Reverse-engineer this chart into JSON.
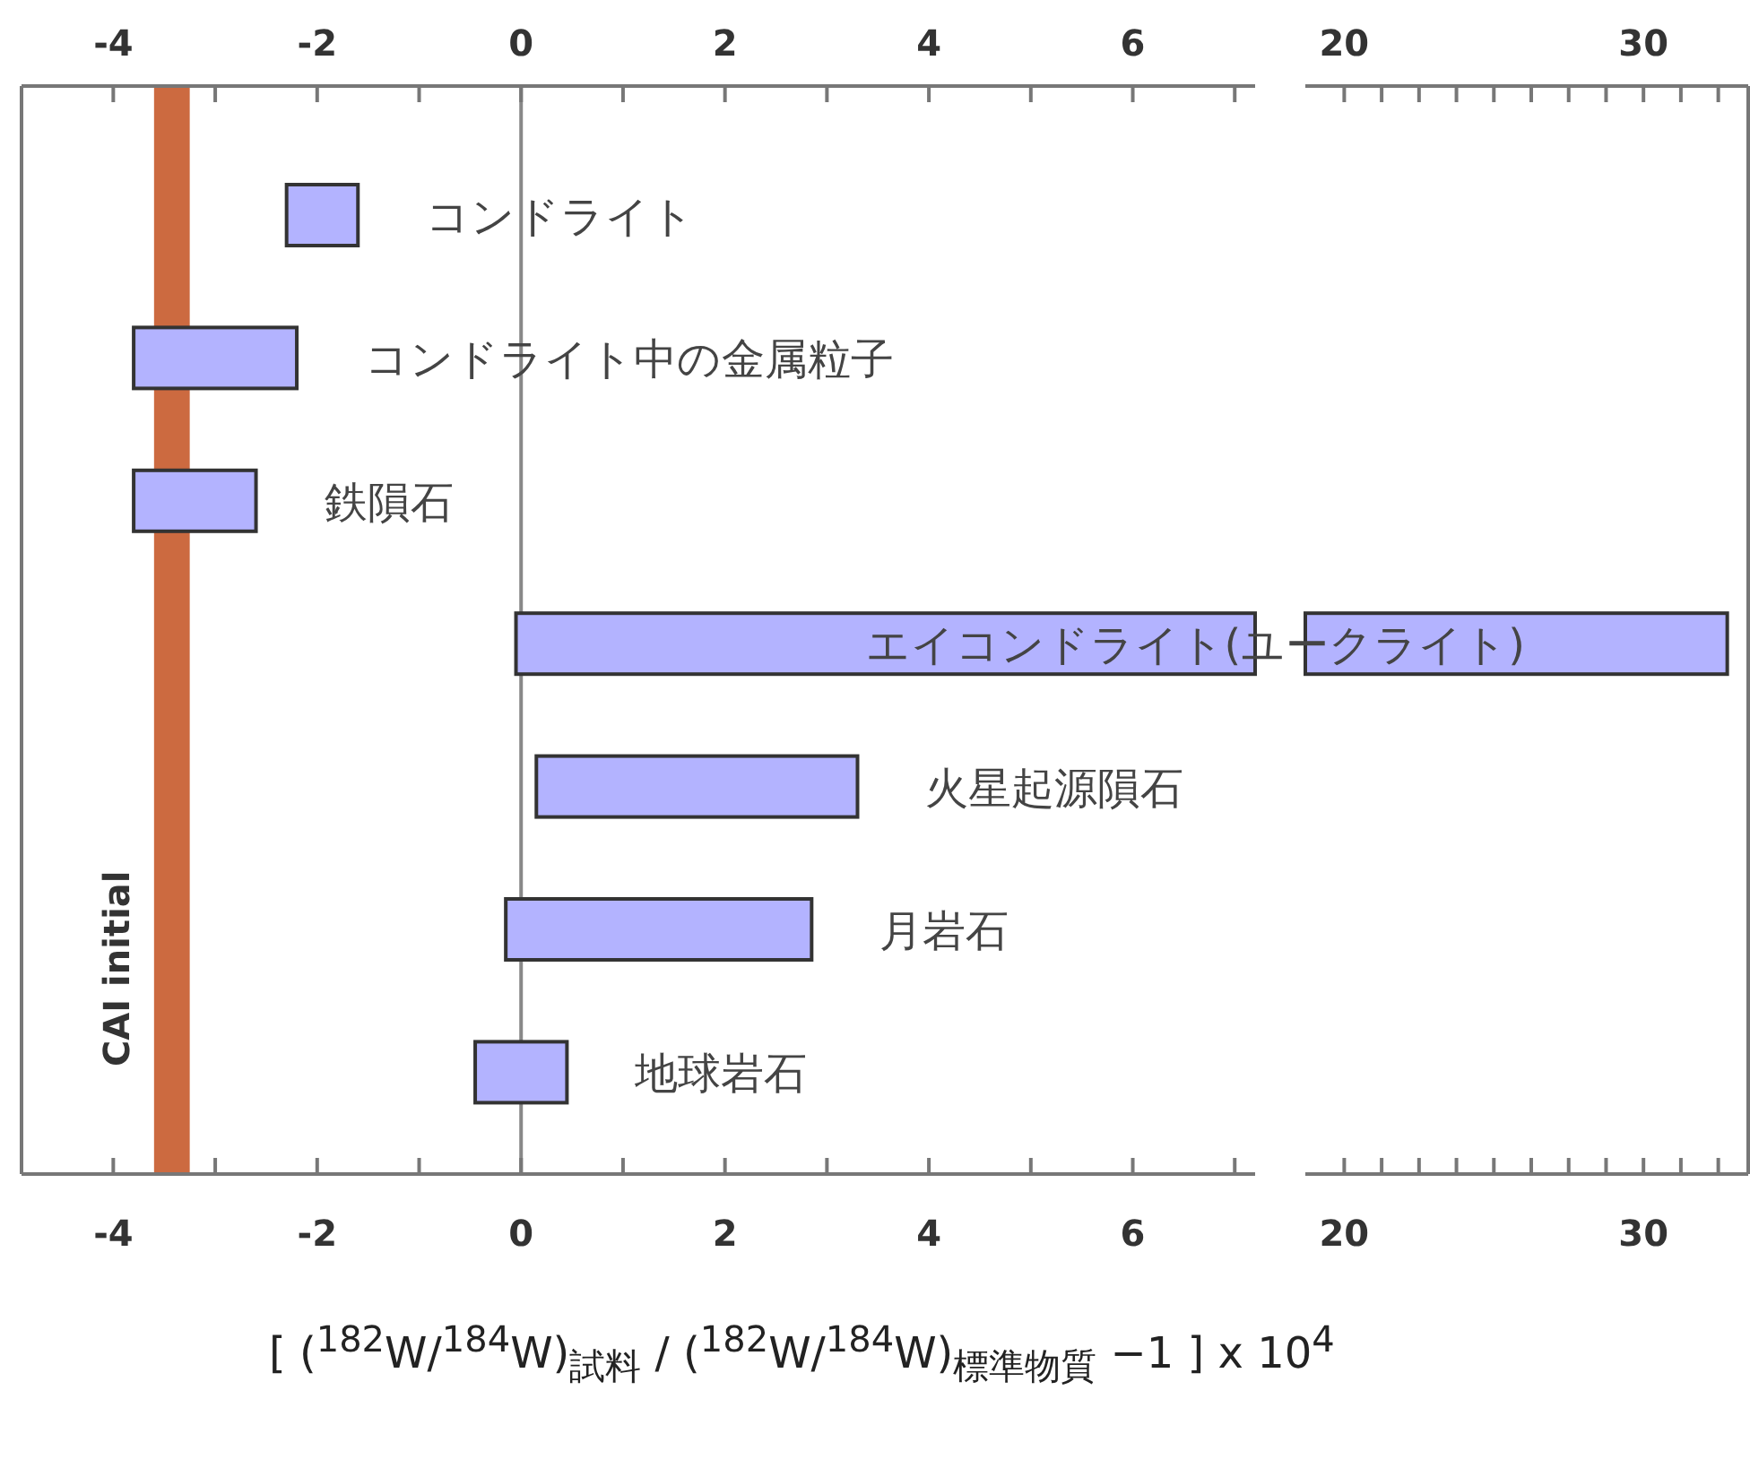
{
  "chart_data": [
    {
      "type": "bar",
      "orientation": "horizontal",
      "tick_labels": "x",
      "categories": [
        "コンドライト",
        "コンドライト中の金属粒子",
        "鉄隕石",
        "エイコンドライト(ユークライト)",
        "火星起源隕石",
        "月岩石",
        "地球岩石"
      ],
      "base": [
        -2.3,
        -3.8,
        -3.8,
        -0.05,
        0.15,
        -0.15,
        -0.45
      ],
      "values": [
        0.7,
        1.6,
        1.2,
        7.25,
        3.15,
        3.0,
        0.9
      ],
      "color": "#b3b3ff",
      "xlim": [
        -4.9,
        7.2
      ],
      "xticks": [
        -4,
        {
          "value": -3,
          "label": null
        },
        -2,
        {
          "value": -1,
          "label": null
        },
        0,
        {
          "value": 1,
          "label": null
        },
        2,
        {
          "value": 3,
          "label": null
        },
        4,
        {
          "value": 5,
          "label": null
        },
        6,
        {
          "value": 7,
          "label": null
        }
      ],
      "x2lim": [
        -4.9,
        7.2
      ],
      "x2ticks": [
        -4,
        {
          "value": -3,
          "label": null
        },
        -2,
        {
          "value": -1,
          "label": null
        },
        0,
        {
          "value": 1,
          "label": null
        },
        2,
        {
          "value": 3,
          "label": null
        },
        4,
        {
          "value": 5,
          "label": null
        },
        6,
        {
          "value": 7,
          "label": null
        }
      ],
      "xlabel": "[ ($^{182}$W/$^{184}$W)$_{試料}$ / ($^{182}$W/$^{184}$W)$_{標準物質}$ −1 ] x 10$^{4}$",
      "ref_lines": [
        {
          "axis": "x",
          "value": 0,
          "color": "#888888"
        }
      ],
      "bands": [
        {
          "axis": "x",
          "from": -3.6,
          "to": -3.25,
          "label": "CAI initial",
          "color": "#cc6a40"
        }
      ]
    },
    {
      "type": "bar",
      "orientation": "horizontal",
      "tick_labels": "x",
      "categories": [
        null,
        null,
        null,
        null,
        null,
        null,
        null
      ],
      "base": [
        null,
        null,
        null,
        18.7,
        null,
        null,
        null
      ],
      "values": [
        null,
        null,
        null,
        14.1,
        null,
        null,
        null
      ],
      "color": "#b3b3ff",
      "xlim": [
        18.7,
        33.5
      ],
      "xticks": [
        20,
        {
          "value": 21.25,
          "label": null
        },
        {
          "value": 22.5,
          "label": null
        },
        {
          "value": 23.75,
          "label": null
        },
        {
          "value": 25,
          "label": null
        },
        {
          "value": 26.25,
          "label": null
        },
        {
          "value": 27.5,
          "label": null
        },
        {
          "value": 28.75,
          "label": null
        },
        30,
        {
          "value": 31.25,
          "label": null
        },
        {
          "value": 32.5,
          "label": null
        }
      ],
      "x2lim": [
        18.7,
        33.5
      ],
      "x2ticks": [
        20,
        {
          "value": 21.25,
          "label": null
        },
        {
          "value": 22.5,
          "label": null
        },
        {
          "value": 23.75,
          "label": null
        },
        {
          "value": 25,
          "label": null
        },
        {
          "value": 26.25,
          "label": null
        },
        {
          "value": 27.5,
          "label": null
        },
        {
          "value": 28.75,
          "label": null
        },
        30,
        {
          "value": 31.25,
          "label": null
        },
        {
          "value": 32.5,
          "label": null
        }
      ]
    }
  ]
}
